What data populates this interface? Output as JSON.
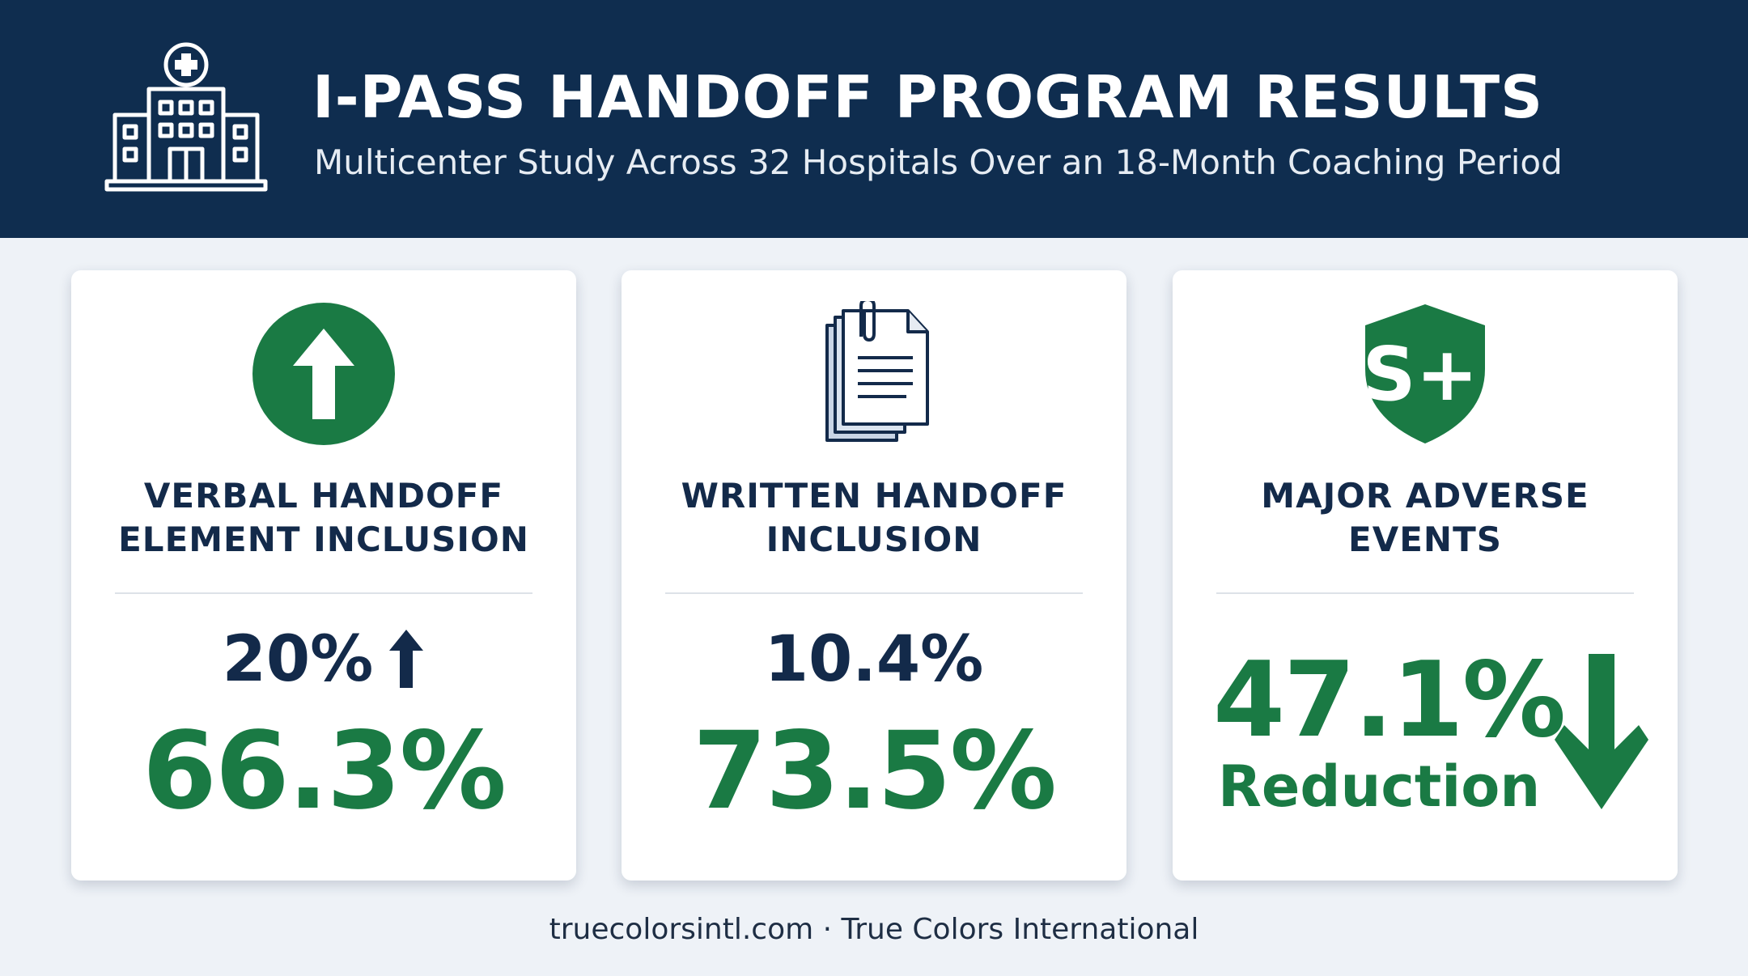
{
  "header": {
    "title": "I-PASS HANDOFF PROGRAM RESULTS",
    "subtitle": "Multicenter Study Across 32 Hospitals Over an 18-Month Coaching Period",
    "icon": "hospital-icon"
  },
  "cards": [
    {
      "icon": "arrow-up-circle-icon",
      "title_line1": "VERBAL HANDOFF",
      "title_line2": "ELEMENT INCLUSION",
      "baseline": "20%",
      "result": "66.3%"
    },
    {
      "icon": "document-icon",
      "title_line1": "WRITTEN HANDOFF",
      "title_line2": "INCLUSION",
      "baseline": "10.4%",
      "result": "73.5%"
    },
    {
      "icon": "shield-icon",
      "title_line1": "MAJOR ADVERSE",
      "title_line2": "EVENTS",
      "value": "47.1%",
      "label": "Reduction",
      "shield_text": "S+"
    }
  ],
  "colors": {
    "header_bg": "#0f2d4f",
    "accent_green": "#1a7a44",
    "navy_text": "#132a4a",
    "page_bg": "#eef2f7"
  },
  "footer": "truecolorsintl.com · True Colors International"
}
